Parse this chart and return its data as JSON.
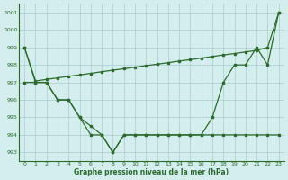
{
  "hours": [
    0,
    1,
    2,
    3,
    4,
    5,
    6,
    7,
    8,
    9,
    10,
    11,
    12,
    13,
    14,
    15,
    16,
    17,
    18,
    19,
    20,
    21,
    22,
    23
  ],
  "line_top": [
    999,
    997.08,
    997.17,
    997.26,
    997.35,
    997.43,
    997.52,
    997.61,
    997.7,
    997.78,
    997.87,
    997.96,
    998.04,
    998.13,
    998.22,
    998.3,
    998.39,
    998.48,
    998.57,
    998.65,
    998.74,
    998.83,
    999.0,
    1001
  ],
  "line_mid": [
    999,
    997,
    997,
    996,
    996,
    995,
    994.5,
    994,
    993,
    994,
    994,
    994,
    994,
    994,
    994,
    994,
    994,
    995,
    997,
    998,
    998,
    999,
    998,
    1001
  ],
  "line_bot": [
    997,
    997,
    997,
    996,
    996,
    995,
    994,
    994,
    993,
    994,
    994,
    994,
    994,
    994,
    994,
    994,
    994,
    994,
    994,
    994,
    994,
    994,
    994,
    994
  ],
  "line_color": "#2d6a2d",
  "bg_color": "#d4eeee",
  "grid_color": "#a8cccc",
  "xlabel": "Graphe pression niveau de la mer (hPa)",
  "ylim": [
    992.5,
    1001.5
  ],
  "yticks": [
    993,
    994,
    995,
    996,
    997,
    998,
    999,
    1000,
    1001
  ],
  "xticks": [
    0,
    1,
    2,
    3,
    4,
    5,
    6,
    7,
    8,
    9,
    10,
    11,
    12,
    13,
    14,
    15,
    16,
    17,
    18,
    19,
    20,
    21,
    22,
    23
  ]
}
